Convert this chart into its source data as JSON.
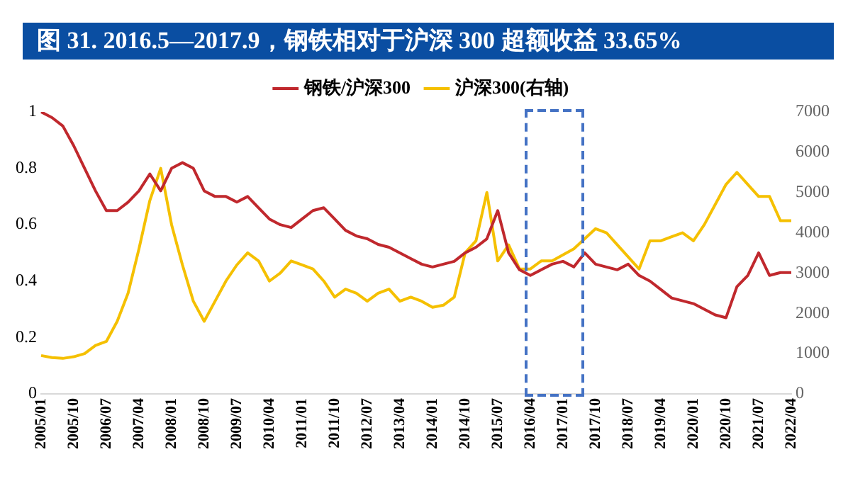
{
  "chart_data": {
    "type": "line",
    "title": "图 31. 2016.5—2017.9，钢铁相对于沪深 300 超额收益 33.65%",
    "categories": [
      "2005/01",
      null,
      null,
      "2005/10",
      null,
      null,
      "2006/07",
      null,
      null,
      "2007/04",
      null,
      null,
      "2008/01",
      null,
      null,
      "2008/10",
      null,
      null,
      "2009/07",
      null,
      null,
      "2010/04",
      null,
      null,
      "2011/01",
      null,
      null,
      "2011/10",
      null,
      null,
      "2012/07",
      null,
      null,
      "2013/04",
      null,
      null,
      "2014/01",
      null,
      null,
      "2014/10",
      null,
      null,
      "2015/07",
      null,
      null,
      "2016/04",
      null,
      null,
      "2017/01",
      null,
      null,
      "2017/10",
      null,
      null,
      "2018/07",
      null,
      null,
      "2019/04",
      null,
      null,
      "2020/01",
      null,
      null,
      "2020/10",
      null,
      null,
      "2021/07",
      null,
      null,
      "2022/04"
    ],
    "series": [
      {
        "name": "钢铁/沪深300",
        "color": "#c0282d",
        "values": [
          1.0,
          0.98,
          0.95,
          0.88,
          0.8,
          0.72,
          0.65,
          0.65,
          0.68,
          0.72,
          0.78,
          0.72,
          0.8,
          0.82,
          0.8,
          0.72,
          0.7,
          0.7,
          0.68,
          0.7,
          0.66,
          0.62,
          0.6,
          0.59,
          0.62,
          0.65,
          0.66,
          0.62,
          0.58,
          0.56,
          0.55,
          0.53,
          0.52,
          0.5,
          0.48,
          0.46,
          0.45,
          0.46,
          0.47,
          0.5,
          0.52,
          0.55,
          0.65,
          0.5,
          0.44,
          0.42,
          0.44,
          0.46,
          0.47,
          0.45,
          0.5,
          0.46,
          0.45,
          0.44,
          0.46,
          0.42,
          0.4,
          0.37,
          0.34,
          0.33,
          0.32,
          0.3,
          0.28,
          0.27,
          0.38,
          0.42,
          0.5,
          0.42,
          0.43,
          0.43
        ]
      },
      {
        "name": "沪深300(右轴)",
        "color": "#f5c000",
        "axis": "y2",
        "values": [
          950,
          900,
          880,
          920,
          1000,
          1200,
          1300,
          1800,
          2500,
          3600,
          4800,
          5600,
          4200,
          3200,
          2300,
          1800,
          2300,
          2800,
          3200,
          3500,
          3300,
          2800,
          3000,
          3300,
          3200,
          3100,
          2800,
          2400,
          2600,
          2500,
          2300,
          2500,
          2600,
          2300,
          2400,
          2300,
          2150,
          2200,
          2400,
          3500,
          3800,
          5000,
          3300,
          3700,
          3100,
          3100,
          3300,
          3300,
          3450,
          3600,
          3850,
          4100,
          4000,
          3700,
          3400,
          3100,
          3800,
          3800,
          3900,
          4000,
          3800,
          4200,
          4700,
          5200,
          5500,
          5200,
          4900,
          4900,
          4300,
          4300
        ]
      }
    ],
    "ylim": [
      0,
      1
    ],
    "yticks": [
      0,
      0.2,
      0.4,
      0.6,
      0.8,
      1
    ],
    "y2lim": [
      0,
      7000
    ],
    "y2ticks": [
      0,
      1000,
      2000,
      3000,
      4000,
      5000,
      6000,
      7000
    ],
    "legend": "top",
    "grid": false,
    "marker": "none",
    "line_style": "solid"
  }
}
